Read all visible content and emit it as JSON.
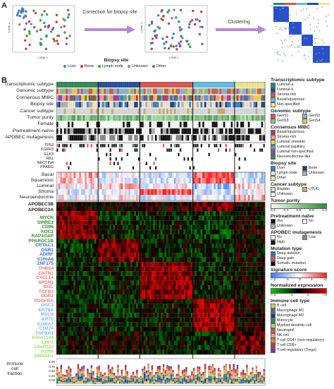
{
  "panel_a": {
    "label": "A",
    "arrow1_text": "Correction for biopsy site",
    "arrow2_text": "Clustering",
    "axis_x": "t-SNE 1",
    "axis_y": "t-SNE 2",
    "legend_title": "Biopsy site",
    "legend_items": [
      {
        "label": "Liver",
        "color": "#3b7fc4"
      },
      {
        "label": "Bone",
        "color": "#d23c2c"
      },
      {
        "label": "Lymph node",
        "color": "#2aa84a"
      },
      {
        "label": "Unknown",
        "color": "#888888"
      },
      {
        "label": "Other",
        "color": "#8c4fb0"
      }
    ]
  },
  "panel_b": {
    "label": "B",
    "annotation_rows": [
      "Transcriptomic subtype",
      "Genomic subtype",
      "Consensus MIBC",
      "Biopsy site",
      "Cancer subtype",
      "Tumor purity",
      "Female",
      "Pretreatment-naïve",
      "APOBEC mutagenesis"
    ],
    "mutation_rows": [
      "TP53",
      "FGFR3",
      "ELF3",
      "RB1",
      "NECTIN4",
      "PPARG"
    ],
    "signature_rows": [
      "Basal",
      "Squamous",
      "Luminal",
      "Stroma",
      "Neuroendocrine"
    ],
    "apobec_rows": [
      "APOBEC3B",
      "APOBEC3A"
    ],
    "gene_rows": [
      {
        "name": "MYCN",
        "color": "#2e8b2e"
      },
      {
        "name": "SPIRE2",
        "color": "#2e8b2e"
      },
      {
        "name": "CD96",
        "color": "#2e8b2e"
      },
      {
        "name": "AOC2",
        "color": "#2e8b2e"
      },
      {
        "name": "RAP1GAP",
        "color": "#2e8b2e"
      },
      {
        "name": "PPARGC1B",
        "color": "#2e8b2e"
      },
      {
        "name": "CRTAC1",
        "color": "#3b6fb6"
      },
      {
        "name": "OSR1",
        "color": "#3b6fb6"
      },
      {
        "name": "ADIRF",
        "color": "#3b6fb6"
      },
      {
        "name": "S100A6",
        "color": "#3b6fb6"
      },
      {
        "name": "ZNF175",
        "color": "#3b6fb6"
      },
      {
        "name": "THBS4",
        "color": "#e07a7a"
      },
      {
        "name": "CNTN1",
        "color": "#e07a7a"
      },
      {
        "name": "CXCL14",
        "color": "#e07a7a"
      },
      {
        "name": "SPON1",
        "color": "#e07a7a"
      },
      {
        "name": "BOC",
        "color": "#e07a7a"
      },
      {
        "name": "TGFB3",
        "color": "#e07a7a"
      },
      {
        "name": "DDR2",
        "color": "#e07a7a"
      },
      {
        "name": "PDGFRA",
        "color": "#e07a7a"
      },
      {
        "name": "DSC3",
        "color": "#7fb3e0"
      },
      {
        "name": "KRT6A",
        "color": "#7fb3e0"
      },
      {
        "name": "MSLN",
        "color": "#7fb3e0"
      },
      {
        "name": "KRT5",
        "color": "#7fb3e0"
      },
      {
        "name": "S100A7",
        "color": "#7fb3e0"
      },
      {
        "name": "CD274",
        "color": "#7fb3e0"
      },
      {
        "name": "TGFBR1",
        "color": "#7fb3e0"
      },
      {
        "name": "KIAA1324",
        "color": "#a6d96a"
      },
      {
        "name": "LRP2",
        "color": "#a6d96a"
      },
      {
        "name": "C6orf223",
        "color": "#a6d96a"
      },
      {
        "name": "PSPH",
        "color": "#a6d96a"
      },
      {
        "name": "DBNDD1",
        "color": "#a6d96a"
      }
    ],
    "immune_label": "Immune cell fraction",
    "immune_ticks": [
      "1.00",
      "0.75",
      "0.50",
      "0.25",
      "0.00"
    ],
    "legends": {
      "transcriptomic": {
        "title": "Transcriptomic subtype",
        "items": [
          {
            "label": "Luminal-a",
            "color": "#2e8b57"
          },
          {
            "label": "Luminal-b",
            "color": "#1f4e9c"
          },
          {
            "label": "Stroma-rich",
            "color": "#d9534f"
          },
          {
            "label": "Basal/squamous",
            "color": "#5bc0de"
          },
          {
            "label": "Non-specified",
            "color": "#f0e68c"
          }
        ]
      },
      "genomic": {
        "title": "Genomic subtype",
        "items": [
          {
            "label": "GenS1",
            "color": "#d9534f"
          },
          {
            "label": "GenS2",
            "color": "#7fb3e0"
          },
          {
            "label": "GenS3",
            "color": "#8fbc8f"
          },
          {
            "label": "GenS4",
            "color": "#e6c84a"
          }
        ]
      },
      "consensus": {
        "title": "Consensus MIBC",
        "items": [
          {
            "label": "Basal/squamous",
            "color": "#c0392b"
          },
          {
            "label": "Stroma-rich",
            "color": "#e8a0a0"
          },
          {
            "label": "Luminal unstable",
            "color": "#f4d03f"
          },
          {
            "label": "Luminal papillary",
            "color": "#5b9bd5"
          },
          {
            "label": "Luminal non-specified",
            "color": "#8e44ad"
          },
          {
            "label": "Neuroendocrine-like",
            "color": "#2e8b57"
          }
        ]
      },
      "biopsy": {
        "title": "Biopsy site",
        "items": [
          {
            "label": "Liver",
            "color": "#3b7fc4"
          },
          {
            "label": "Bone",
            "color": "#1f3f7a"
          },
          {
            "label": "Lymph node",
            "color": "#e8e8e8"
          },
          {
            "label": "Unknown",
            "color": "#b0b0b0"
          },
          {
            "label": "Other",
            "color": "#f3e5c0"
          }
        ]
      },
      "cancer": {
        "title": "Cancer subtype",
        "items": [
          {
            "label": "Bladder",
            "color": "#d9d9d9"
          },
          {
            "label": "UTUC",
            "color": "#c8a96e"
          },
          {
            "label": "Unknown",
            "color": "#ffffff"
          }
        ]
      },
      "purity": {
        "title": "Tumor purity",
        "ticks": [
          "0.2",
          "0.4",
          "0.6",
          "0.8",
          "1.0"
        ]
      },
      "pretreat": {
        "title": "Pretreatment-naïve",
        "items": [
          {
            "label": "Yes",
            "color": "#111111"
          },
          {
            "label": "No",
            "color": "#ffffff"
          },
          {
            "label": "Unknown",
            "color": "#b0b0b0"
          }
        ]
      },
      "apobec": {
        "title": "APOBEC mutagenesis",
        "items": [
          {
            "label": "No",
            "color": "#ffffff"
          },
          {
            "label": "Low",
            "color": "#888888"
          },
          {
            "label": "High",
            "color": "#111111"
          }
        ]
      },
      "mutation": {
        "title": "Mutation type",
        "items": [
          {
            "label": "Deep deletion",
            "color": "#3b6fb6"
          },
          {
            "label": "Deep gain",
            "color": "#d9534f"
          },
          {
            "label": "Somatic mutation",
            "color": "#111111"
          }
        ]
      },
      "signature": {
        "title": "Signature score",
        "ticks": [
          "<-2",
          "-1",
          "0",
          "1",
          ">2"
        ]
      },
      "expression": {
        "title": "Normalized expression",
        "ticks": [
          "<-3",
          "-1",
          "1",
          ">3"
        ]
      },
      "immune": {
        "title": "Immune cell type",
        "items": [
          {
            "label": "B cell",
            "color": "#e6c84a"
          },
          {
            "label": "Macrophage M1",
            "color": "#3b6fb6"
          },
          {
            "label": "Macrophage M2",
            "color": "#1f3f7a"
          },
          {
            "label": "Monocyte",
            "color": "#2e8b57"
          },
          {
            "label": "Myeloid dendritic cell",
            "color": "#a6d96a"
          },
          {
            "label": "Neutrophil",
            "color": "#d9534f"
          },
          {
            "label": "NK cell",
            "color": "#f4a582"
          },
          {
            "label": "T cell CD4+ (non-regulatory)",
            "color": "#e08a3c"
          },
          {
            "label": "T cell CD8+",
            "color": "#c0392b"
          },
          {
            "label": "T cell regulatory (Tregs)",
            "color": "#6a3d9a"
          }
        ]
      }
    }
  }
}
